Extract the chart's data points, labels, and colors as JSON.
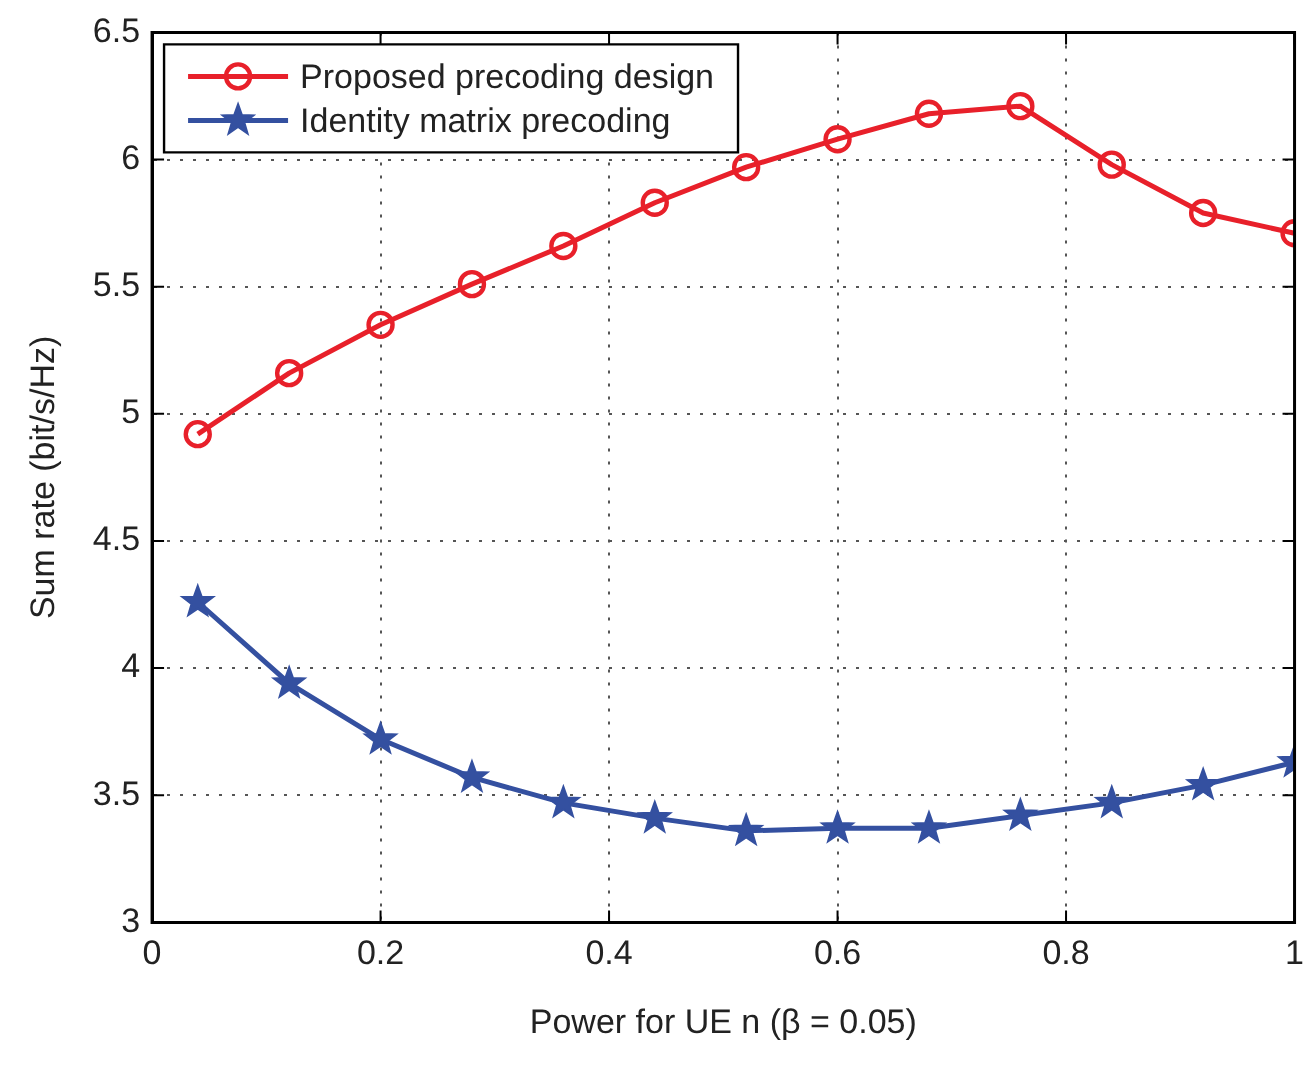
{
  "chart_data": {
    "type": "line",
    "xlabel": "Power for UE n (β = 0.05)",
    "ylabel": "Sum rate (bit/s/Hz)",
    "x": [
      0.04,
      0.12,
      0.2,
      0.28,
      0.36,
      0.44,
      0.52,
      0.6,
      0.68,
      0.76,
      0.84,
      0.92,
      1.0
    ],
    "series": [
      {
        "name": "Proposed precoding design",
        "color": "#e8202a",
        "marker": "circle",
        "values": [
          4.92,
          5.16,
          5.35,
          5.51,
          5.66,
          5.83,
          5.97,
          6.08,
          6.18,
          6.21,
          5.98,
          5.79,
          5.71
        ]
      },
      {
        "name": "Identity matrix precoding",
        "color": "#3450a0",
        "marker": "star",
        "values": [
          4.26,
          3.94,
          3.72,
          3.57,
          3.47,
          3.41,
          3.36,
          3.37,
          3.37,
          3.42,
          3.47,
          3.54,
          3.63
        ]
      }
    ],
    "xlim": [
      0,
      1
    ],
    "xticks": [
      0,
      0.2,
      0.4,
      0.6,
      0.8,
      1
    ],
    "ylim": [
      3,
      6.5
    ],
    "yticks": [
      3,
      3.5,
      4,
      4.5,
      5,
      5.5,
      6,
      6.5
    ],
    "grid": true,
    "legend": "top left",
    "line_style": "solid"
  }
}
